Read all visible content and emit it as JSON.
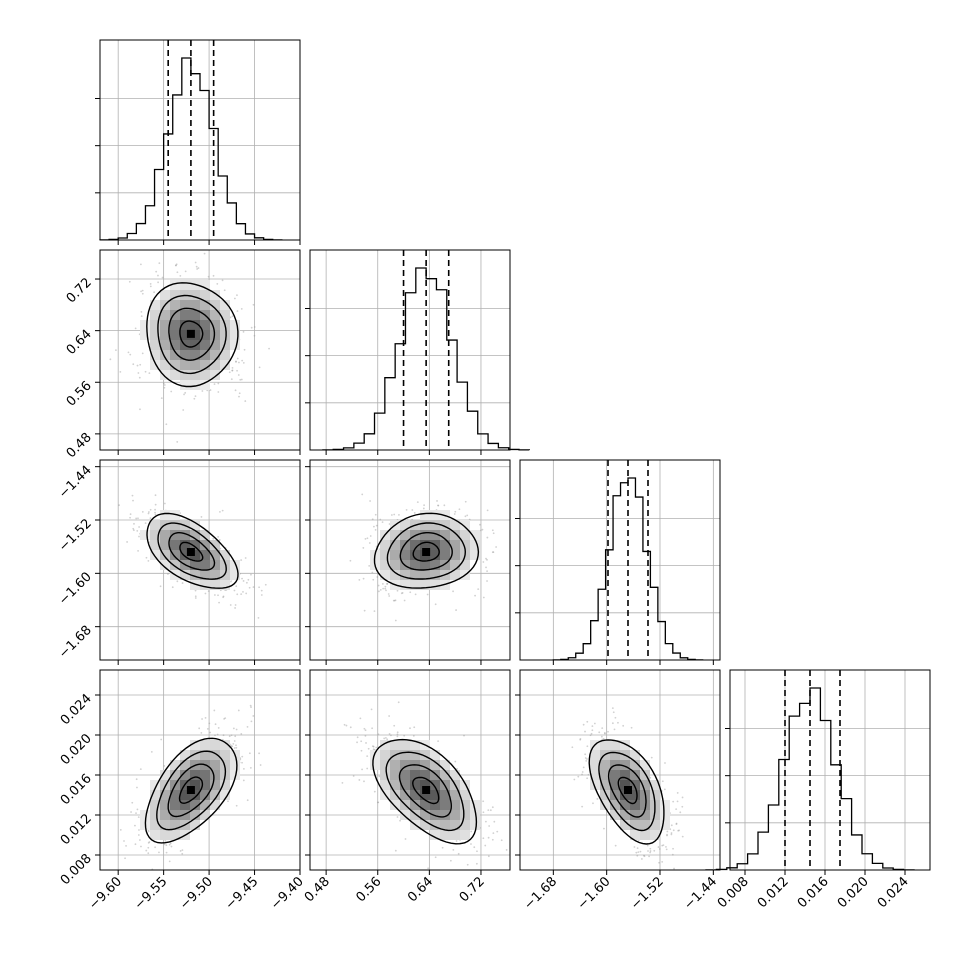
{
  "chart_data": {
    "type": "corner",
    "title": "",
    "params": [
      {
        "mean": -9.52,
        "std": 0.025,
        "quantiles": [
          -9.545,
          -9.52,
          -9.495
        ],
        "range": [
          -9.62,
          -9.4
        ],
        "ticks": [
          "−9.60",
          "−9.55",
          "−9.50",
          "−9.45",
          "−9.40"
        ],
        "tick_values": [
          -9.6,
          -9.55,
          -9.5,
          -9.45,
          -9.4
        ]
      },
      {
        "mean": 0.635,
        "std": 0.04,
        "quantiles": [
          0.6,
          0.635,
          0.67
        ],
        "range": [
          0.455,
          0.765
        ],
        "ticks": [
          "0.48",
          "0.56",
          "0.64",
          "0.72"
        ],
        "tick_values": [
          0.48,
          0.56,
          0.64,
          0.72
        ]
      },
      {
        "mean": -1.568,
        "std": 0.028,
        "quantiles": [
          -1.598,
          -1.568,
          -1.538
        ],
        "range": [
          -1.73,
          -1.43
        ],
        "ticks": [
          "−1.68",
          "−1.60",
          "−1.52",
          "−1.44"
        ],
        "tick_values": [
          -1.68,
          -1.6,
          -1.52,
          -1.44
        ]
      },
      {
        "mean": 0.0145,
        "std": 0.0026,
        "quantiles": [
          0.012,
          0.0145,
          0.0175
        ],
        "range": [
          0.0065,
          0.0265
        ],
        "ticks": [
          "0.008",
          "0.012",
          "0.016",
          "0.020",
          "0.024"
        ],
        "tick_values": [
          0.008,
          0.012,
          0.016,
          0.02,
          0.024
        ]
      }
    ],
    "correlations": [
      {
        "i": 1,
        "j": 0,
        "rho": -0.05
      },
      {
        "i": 2,
        "j": 0,
        "rho": -0.55
      },
      {
        "i": 2,
        "j": 1,
        "rho": 0.1
      },
      {
        "i": 3,
        "j": 0,
        "rho": 0.55
      },
      {
        "i": 3,
        "j": 1,
        "rho": -0.55
      },
      {
        "i": 3,
        "j": 2,
        "rho": -0.5
      }
    ],
    "grid": true,
    "quantile_line_style": "dashed"
  }
}
